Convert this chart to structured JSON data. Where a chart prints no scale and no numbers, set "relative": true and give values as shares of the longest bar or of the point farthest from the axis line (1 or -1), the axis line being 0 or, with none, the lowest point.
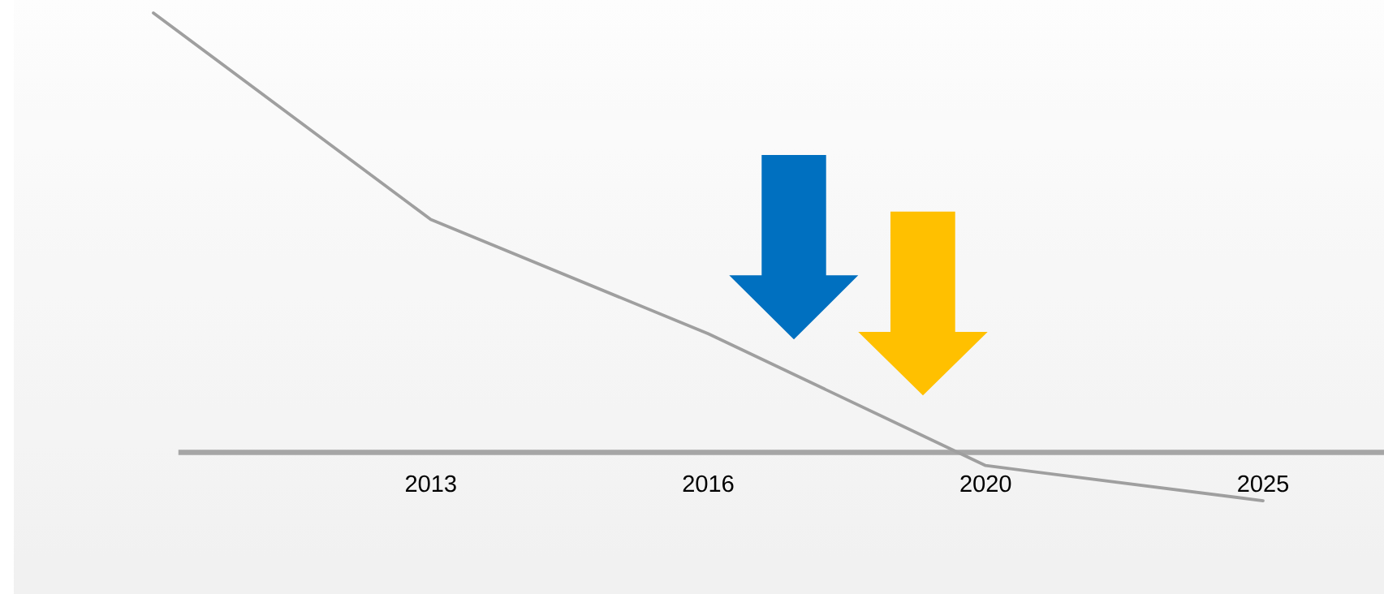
{
  "chart_data": {
    "type": "line",
    "relative": true,
    "categories": [
      null,
      "2013",
      "2016",
      "2020",
      "2025"
    ],
    "series": [
      {
        "color": "#9f9f9f",
        "values": [
          1,
          0.53,
          0.27,
          -0.03,
          -0.11
        ]
      }
    ],
    "marker": "none",
    "line_style": "solid"
  }
}
